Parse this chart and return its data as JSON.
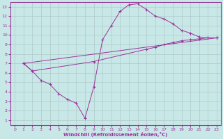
{
  "xlabel": "Windchill (Refroidissement éolien,°C)",
  "background_color": "#c8e8e8",
  "grid_color": "#b0c8c8",
  "line_color": "#993399",
  "xlim": [
    -0.5,
    23.5
  ],
  "ylim": [
    0.5,
    13.5
  ],
  "xticks": [
    0,
    1,
    2,
    3,
    4,
    5,
    6,
    7,
    8,
    9,
    10,
    11,
    12,
    13,
    14,
    15,
    16,
    17,
    18,
    19,
    20,
    21,
    22,
    23
  ],
  "yticks": [
    1,
    2,
    3,
    4,
    5,
    6,
    7,
    8,
    9,
    10,
    11,
    12,
    13
  ],
  "line1_x": [
    1,
    2,
    3,
    4,
    5,
    6,
    7,
    8,
    9,
    10,
    11,
    12,
    13,
    14,
    15,
    16,
    17,
    18,
    19,
    20,
    21,
    22,
    23
  ],
  "line1_y": [
    7.0,
    6.2,
    5.2,
    4.8,
    3.8,
    3.2,
    2.8,
    1.2,
    4.5,
    9.5,
    11.0,
    12.5,
    13.2,
    13.3,
    12.7,
    12.0,
    11.7,
    11.2,
    10.5,
    10.2,
    9.8,
    9.7,
    9.7
  ],
  "line2_x": [
    1,
    2,
    9,
    15,
    16,
    17,
    18,
    19,
    20,
    21,
    22,
    23
  ],
  "line2_y": [
    7.0,
    6.2,
    7.2,
    8.5,
    8.7,
    9.0,
    9.2,
    9.4,
    9.5,
    9.6,
    9.7,
    9.7
  ],
  "line3_x": [
    1,
    23
  ],
  "line3_y": [
    7.0,
    9.7
  ]
}
